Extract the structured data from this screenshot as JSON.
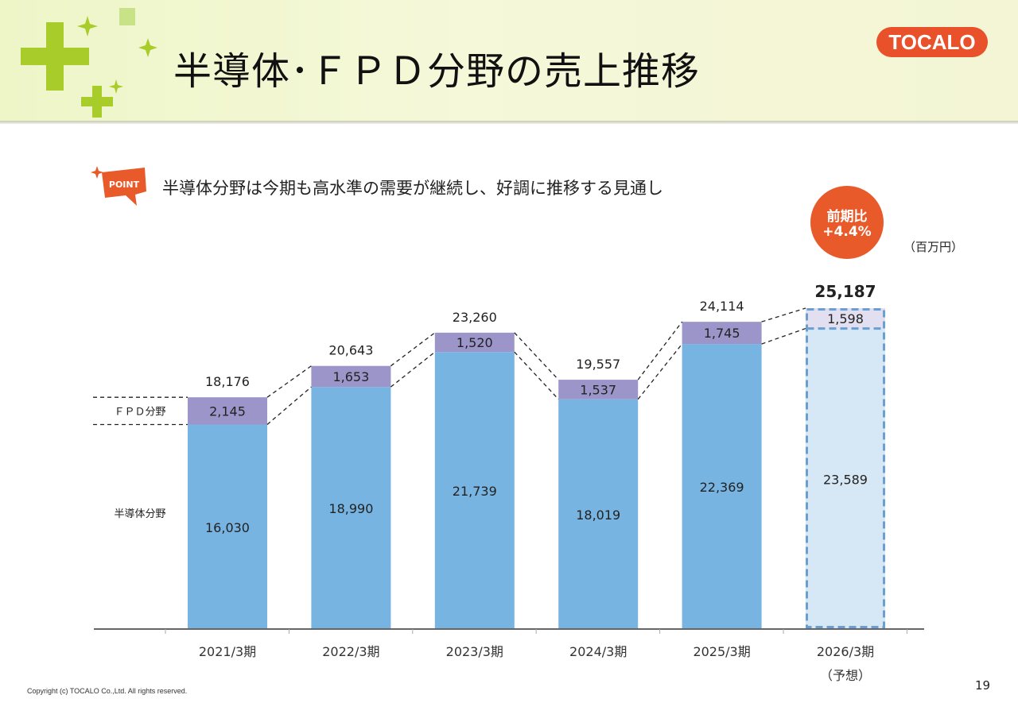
{
  "title": "半導体･ＦＰＤ分野の売上推移",
  "logo": "TOCALO",
  "point_label": "POINT",
  "point_text": "半導体分野は今期も高水準の需要が継続し、好調に推移する見通し",
  "badge": {
    "line1": "前期比",
    "line2": "+4.4%"
  },
  "unit": "（百万円）",
  "copyright": "Copyright (c) TOCALO Co.,Ltd. All rights reserved.",
  "page_number": "19",
  "colors": {
    "semiconductor": "#78b4e1",
    "fpd": "#9b95c9",
    "forecast_fill": "#d6e8f6",
    "forecast_top": "#e2e0f0",
    "forecast_border": "#6a9fd4",
    "accent": "#e85a2a"
  },
  "chart_data": {
    "type": "bar",
    "stacked": true,
    "categories": [
      "2021/3期",
      "2022/3期",
      "2023/3期",
      "2024/3期",
      "2025/3期",
      "2026/3期"
    ],
    "category_sublabels": [
      "",
      "",
      "",
      "",
      "",
      "（予想）"
    ],
    "series": [
      {
        "name": "半導体分野",
        "values": [
          16030,
          18990,
          21739,
          18019,
          22369,
          23589
        ]
      },
      {
        "name": "ＦＰＤ分野",
        "values": [
          2145,
          1653,
          1520,
          1537,
          1745,
          1598
        ]
      }
    ],
    "totals": [
      "18,176",
      "20,643",
      "23,260",
      "19,557",
      "24,114",
      "25,187"
    ],
    "value_labels": {
      "semiconductor": [
        "16,030",
        "18,990",
        "21,739",
        "18,019",
        "22,369",
        "23,589"
      ],
      "fpd": [
        "2,145",
        "1,653",
        "1,520",
        "1,537",
        "1,745",
        "1,598"
      ]
    },
    "forecast_index": 5,
    "ylim": [
      0,
      25187
    ]
  }
}
